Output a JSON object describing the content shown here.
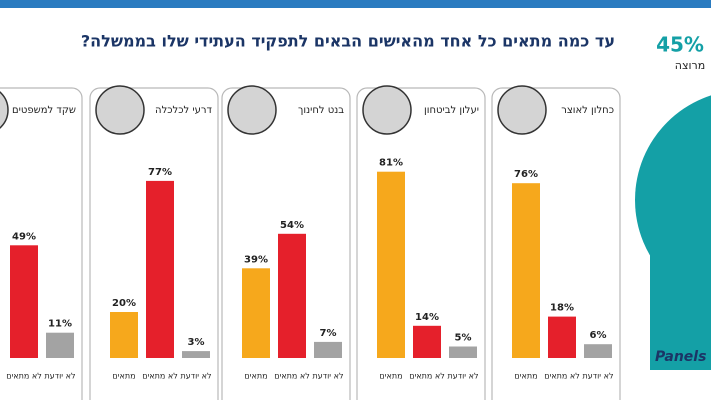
{
  "title": "עד כמה מתאים כל אחד מהאישים הבאים לתפקיד העתידי שלו בממשלה?",
  "chart_data": [
    {
      "type": "bar",
      "title": "כחלון לאוצר",
      "categories": [
        "מתאים",
        "לא מתאים",
        "לא יודעת"
      ],
      "values": [
        76,
        18,
        6
      ],
      "value_labels": [
        "76%",
        "18%",
        "6%"
      ],
      "colors": [
        "#f6a81c",
        "#e5202b",
        "#a3a3a3"
      ]
    },
    {
      "type": "bar",
      "title": "יעלון לביטחון",
      "categories": [
        "מתאים",
        "לא מתאים",
        "לא יודעת"
      ],
      "values": [
        81,
        14,
        5
      ],
      "value_labels": [
        "81%",
        "14%",
        "5%"
      ],
      "colors": [
        "#f6a81c",
        "#e5202b",
        "#a3a3a3"
      ]
    },
    {
      "type": "bar",
      "title": "בנט לחינוך",
      "categories": [
        "מתאים",
        "לא מתאים",
        "לא יודעת"
      ],
      "values": [
        39,
        54,
        7
      ],
      "value_labels": [
        "39%",
        "54%",
        "7%"
      ],
      "colors": [
        "#f6a81c",
        "#e5202b",
        "#a3a3a3"
      ]
    },
    {
      "type": "bar",
      "title": "דרעי לכלכלה",
      "categories": [
        "מתאים",
        "לא מתאים",
        "לא יודעת"
      ],
      "values": [
        20,
        77,
        3
      ],
      "value_labels": [
        "20%",
        "77%",
        "3%"
      ],
      "colors": [
        "#f6a81c",
        "#e5202b",
        "#a3a3a3"
      ]
    },
    {
      "type": "bar",
      "title": "שקד למשפטים",
      "categories": [
        "לא מתאים",
        "לא יודעת"
      ],
      "values": [
        49,
        11
      ],
      "value_labels": [
        "49%",
        "11%"
      ],
      "colors": [
        "#e5202b",
        "#a3a3a3"
      ]
    }
  ],
  "side": {
    "percent": "45%",
    "label": "מרוצה",
    "logo": "Panels"
  }
}
